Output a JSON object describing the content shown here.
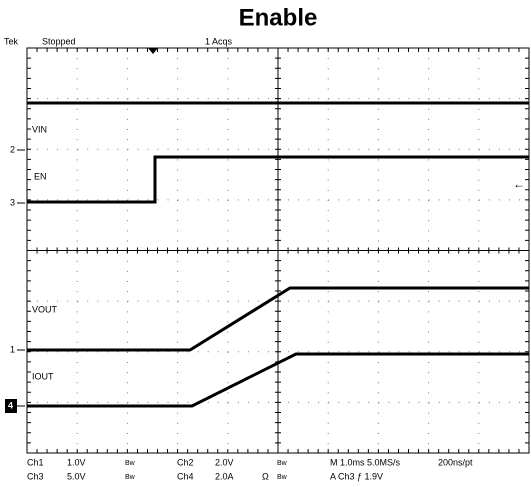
{
  "header": {
    "title": "Enable",
    "brand": "Tek",
    "status": "Stopped",
    "acquisitions": "1 Acqs"
  },
  "traces": [
    {
      "label": "VIN",
      "marker": null
    },
    {
      "label": "EN",
      "marker": "2"
    },
    {
      "label": "VOUT",
      "marker": "3"
    },
    {
      "label": "IOUT",
      "marker": "1"
    }
  ],
  "markers": {
    "ch2": "2",
    "ch3": "3",
    "ch1": "1",
    "ch4": "4"
  },
  "footer": {
    "row1": {
      "ch": "Ch1",
      "scale": "1.0V",
      "bw": "Bw",
      "ch_b": "Ch2",
      "scale_b": "2.0V",
      "bw_b": "Bw",
      "timebase": "M 1.0ms 5.0MS/s",
      "resolution": "200ns/pt"
    },
    "row2": {
      "ch": "Ch3",
      "scale": "5.0V",
      "bw": "Bw",
      "ch_b": "Ch4",
      "scale_b": "2.0A",
      "ohm": "Ω",
      "bw_b": "Bw",
      "trigger": "A  Ch3  ƒ  1.9V"
    }
  }
}
